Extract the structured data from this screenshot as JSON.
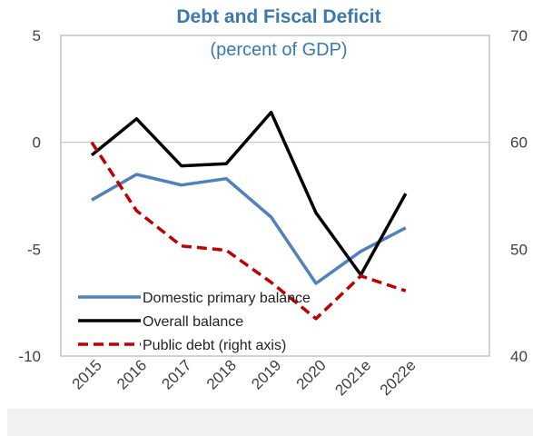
{
  "chart_data": {
    "type": "line",
    "title": "Debt and Fiscal Deficit",
    "subtitle": "(percent of GDP)",
    "categories": [
      "2015",
      "2016",
      "2017",
      "2018",
      "2019",
      "2020",
      "2021e",
      "2022e"
    ],
    "y_left": {
      "ylim": [
        -10,
        5
      ],
      "ticks": [
        5,
        0,
        -5,
        -10
      ],
      "tick_labels": [
        "5",
        "0",
        "-5",
        "-10"
      ]
    },
    "y_right": {
      "ylim": [
        40,
        70
      ],
      "ticks": [
        70,
        60,
        50,
        40
      ],
      "tick_labels": [
        "70",
        "60",
        "50",
        "40"
      ]
    },
    "series": [
      {
        "name": "Domestic primary balance",
        "axis": "left",
        "color": "#4f81bd",
        "dash": "solid",
        "values": [
          -2.7,
          -1.5,
          -2.0,
          -1.7,
          -3.5,
          -6.6,
          -5.1,
          -4.0
        ]
      },
      {
        "name": "Overall balance",
        "axis": "left",
        "color": "#000000",
        "dash": "solid",
        "values": [
          -0.6,
          1.1,
          -1.1,
          -1.0,
          1.4,
          -3.3,
          -6.2,
          -2.4
        ]
      },
      {
        "name": "Public debt (right axis)",
        "axis": "right",
        "color": "#c00000",
        "dash": "dashed",
        "values": [
          60.0,
          53.6,
          50.3,
          49.9,
          46.9,
          43.5,
          47.5,
          46.1
        ]
      }
    ],
    "gridlines": [
      0
    ],
    "legend_placement": "bottom-left"
  }
}
